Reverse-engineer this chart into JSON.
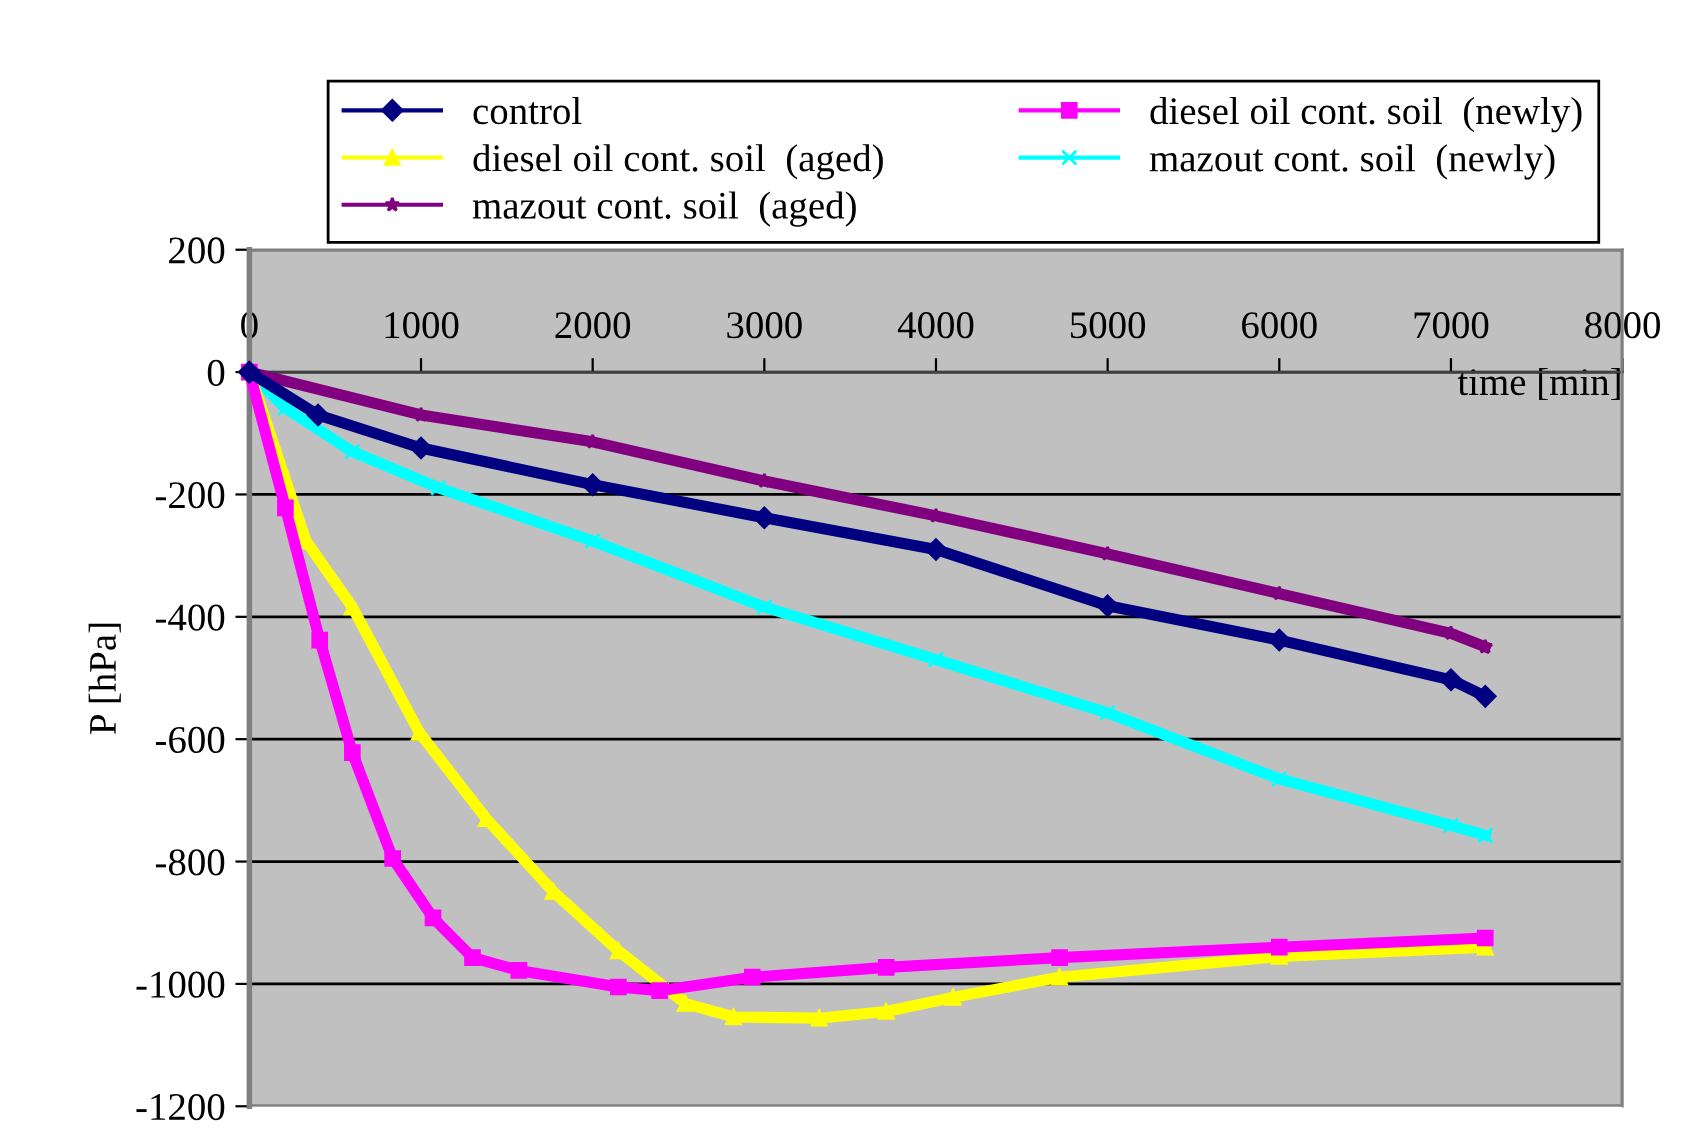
{
  "chart_data": {
    "type": "line",
    "xlabel": "time [min]",
    "ylabel": "P [hPa]",
    "xlim": [
      0,
      8000
    ],
    "xticks": [
      0,
      1000,
      2000,
      3000,
      4000,
      5000,
      6000,
      7000,
      8000
    ],
    "ylim": [
      -1200,
      200
    ],
    "yticks": [
      -1200,
      -1000,
      -800,
      -600,
      -400,
      -200,
      0,
      200
    ],
    "grid": "y",
    "legend": "top",
    "series": [
      {
        "name": "control",
        "color": "#000080",
        "marker": "diamond",
        "x": [
          0,
          400,
          1000,
          2000,
          3000,
          4000,
          5000,
          6000,
          7000,
          7200
        ],
        "values": [
          0,
          -70,
          -124,
          -184,
          -238,
          -290,
          -382,
          -438,
          -503,
          -530
        ]
      },
      {
        "name": "diesel oil cont. soil  (newly)",
        "color": "#ff00ff",
        "marker": "square",
        "x": [
          0,
          210,
          410,
          600,
          835,
          1070,
          1300,
          1570,
          2150,
          2390,
          2930,
          3710,
          4720,
          6000,
          7200
        ],
        "values": [
          0,
          -222,
          -438,
          -622,
          -795,
          -892,
          -957,
          -978,
          -1005,
          -1011,
          -989,
          -973,
          -957,
          -940,
          -925
        ]
      },
      {
        "name": "diesel oil cont. soil  (aged)",
        "color": "#ffff00",
        "marker": "triangle",
        "x": [
          0,
          330,
          600,
          990,
          1380,
          1770,
          2150,
          2540,
          2820,
          3320,
          3710,
          4100,
          4720,
          6000,
          7200
        ],
        "values": [
          0,
          -276,
          -384,
          -589,
          -730,
          -849,
          -946,
          -1032,
          -1054,
          -1056,
          -1045,
          -1022,
          -989,
          -955,
          -940
        ]
      },
      {
        "name": "mazout cont. soil  (newly)",
        "color": "#00ffff",
        "marker": "cross",
        "x": [
          0,
          210,
          600,
          1100,
          2000,
          3000,
          4000,
          5000,
          6000,
          7000,
          7200
        ],
        "values": [
          0,
          -59,
          -130,
          -189,
          -276,
          -384,
          -470,
          -557,
          -665,
          -741,
          -757
        ]
      },
      {
        "name": "mazout cont. soil  (aged)",
        "color": "#800080",
        "marker": "star",
        "x": [
          0,
          1000,
          2000,
          3000,
          4000,
          5000,
          6000,
          7000,
          7200
        ],
        "values": [
          0,
          -70,
          -114,
          -178,
          -235,
          -297,
          -362,
          -427,
          -449
        ]
      }
    ]
  }
}
